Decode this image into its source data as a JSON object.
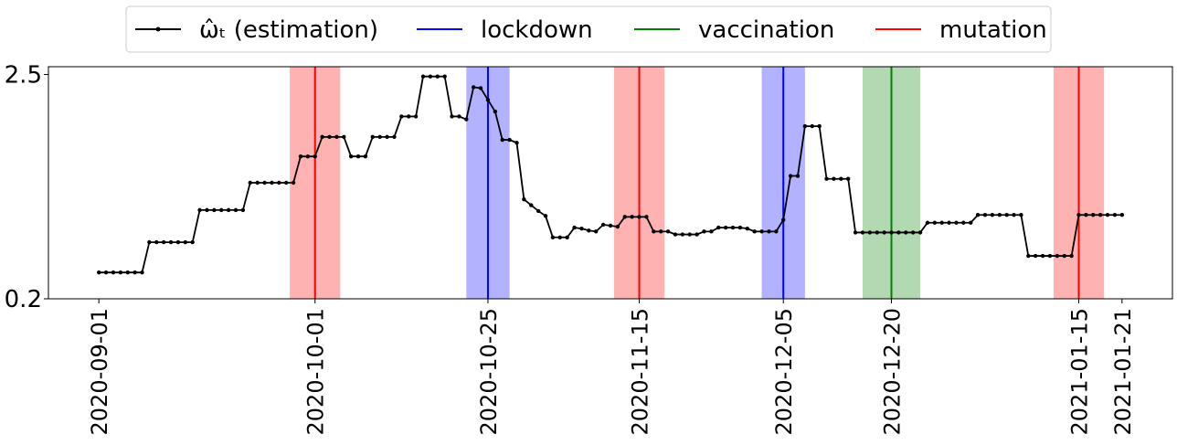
{
  "chart_data": {
    "type": "line",
    "x": [
      "2020-09-01",
      "2020-09-02",
      "2020-09-03",
      "2020-09-04",
      "2020-09-05",
      "2020-09-06",
      "2020-09-07",
      "2020-09-08",
      "2020-09-09",
      "2020-09-10",
      "2020-09-11",
      "2020-09-12",
      "2020-09-13",
      "2020-09-14",
      "2020-09-15",
      "2020-09-16",
      "2020-09-17",
      "2020-09-18",
      "2020-09-19",
      "2020-09-20",
      "2020-09-21",
      "2020-09-22",
      "2020-09-23",
      "2020-09-24",
      "2020-09-25",
      "2020-09-26",
      "2020-09-27",
      "2020-09-28",
      "2020-09-29",
      "2020-09-30",
      "2020-10-01",
      "2020-10-02",
      "2020-10-03",
      "2020-10-04",
      "2020-10-05",
      "2020-10-06",
      "2020-10-07",
      "2020-10-08",
      "2020-10-09",
      "2020-10-10",
      "2020-10-11",
      "2020-10-12",
      "2020-10-13",
      "2020-10-14",
      "2020-10-15",
      "2020-10-16",
      "2020-10-17",
      "2020-10-18",
      "2020-10-19",
      "2020-10-20",
      "2020-10-21",
      "2020-10-22",
      "2020-10-23",
      "2020-10-24",
      "2020-10-25",
      "2020-10-26",
      "2020-10-27",
      "2020-10-28",
      "2020-10-29",
      "2020-10-30",
      "2020-10-31",
      "2020-11-01",
      "2020-11-02",
      "2020-11-03",
      "2020-11-04",
      "2020-11-05",
      "2020-11-06",
      "2020-11-07",
      "2020-11-08",
      "2020-11-09",
      "2020-11-10",
      "2020-11-11",
      "2020-11-12",
      "2020-11-13",
      "2020-11-14",
      "2020-11-15",
      "2020-11-16",
      "2020-11-17",
      "2020-11-18",
      "2020-11-19",
      "2020-11-20",
      "2020-11-21",
      "2020-11-22",
      "2020-11-23",
      "2020-11-24",
      "2020-11-25",
      "2020-11-26",
      "2020-11-27",
      "2020-11-28",
      "2020-11-29",
      "2020-11-30",
      "2020-12-01",
      "2020-12-02",
      "2020-12-03",
      "2020-12-04",
      "2020-12-05",
      "2020-12-06",
      "2020-12-07",
      "2020-12-08",
      "2020-12-09",
      "2020-12-10",
      "2020-12-11",
      "2020-12-12",
      "2020-12-13",
      "2020-12-14",
      "2020-12-15",
      "2020-12-16",
      "2020-12-17",
      "2020-12-18",
      "2020-12-19",
      "2020-12-20",
      "2020-12-21",
      "2020-12-22",
      "2020-12-23",
      "2020-12-24",
      "2020-12-25",
      "2020-12-26",
      "2020-12-27",
      "2020-12-28",
      "2020-12-29",
      "2020-12-30",
      "2020-12-31",
      "2021-01-01",
      "2021-01-02",
      "2021-01-03",
      "2021-01-04",
      "2021-01-05",
      "2021-01-06",
      "2021-01-07",
      "2021-01-08",
      "2021-01-09",
      "2021-01-10",
      "2021-01-11",
      "2021-01-12",
      "2021-01-13",
      "2021-01-14",
      "2021-01-15",
      "2021-01-16",
      "2021-01-17",
      "2021-01-18",
      "2021-01-19",
      "2021-01-20",
      "2021-01-21"
    ],
    "series": [
      {
        "name": "ω̂ₜ (estimation)",
        "color": "#000000",
        "values": [
          0.47,
          0.47,
          0.47,
          0.47,
          0.47,
          0.47,
          0.47,
          0.78,
          0.78,
          0.78,
          0.78,
          0.78,
          0.78,
          0.78,
          1.11,
          1.11,
          1.11,
          1.11,
          1.11,
          1.11,
          1.11,
          1.39,
          1.39,
          1.39,
          1.39,
          1.39,
          1.39,
          1.39,
          1.66,
          1.66,
          1.66,
          1.86,
          1.86,
          1.86,
          1.86,
          1.66,
          1.66,
          1.66,
          1.86,
          1.86,
          1.86,
          1.86,
          2.07,
          2.07,
          2.07,
          2.48,
          2.48,
          2.48,
          2.48,
          2.07,
          2.07,
          2.04,
          2.37,
          2.36,
          2.24,
          2.12,
          1.83,
          1.83,
          1.8,
          1.22,
          1.16,
          1.1,
          1.05,
          0.83,
          0.83,
          0.83,
          0.93,
          0.92,
          0.9,
          0.89,
          0.96,
          0.95,
          0.94,
          1.04,
          1.04,
          1.04,
          1.04,
          0.89,
          0.89,
          0.89,
          0.86,
          0.86,
          0.86,
          0.86,
          0.89,
          0.89,
          0.93,
          0.93,
          0.93,
          0.93,
          0.92,
          0.89,
          0.89,
          0.89,
          0.89,
          1.01,
          1.46,
          1.46,
          1.97,
          1.97,
          1.97,
          1.43,
          1.43,
          1.43,
          1.43,
          0.88,
          0.88,
          0.88,
          0.88,
          0.88,
          0.88,
          0.88,
          0.88,
          0.88,
          0.88,
          0.98,
          0.98,
          0.98,
          0.98,
          0.98,
          0.98,
          0.98,
          1.06,
          1.06,
          1.06,
          1.06,
          1.06,
          1.06,
          1.06,
          0.64,
          0.64,
          0.64,
          0.64,
          0.64,
          0.64,
          0.64,
          1.06,
          1.06,
          1.06,
          1.06,
          1.06,
          1.06,
          1.06
        ]
      }
    ],
    "events": [
      {
        "name": "lockdown",
        "color": "#0000ff",
        "dates": [
          "2020-10-25",
          "2020-12-05"
        ],
        "halfwidth_days": [
          3,
          3
        ]
      },
      {
        "name": "vaccination",
        "color": "#008000",
        "dates": [
          "2020-12-20"
        ],
        "halfwidth_days": [
          4
        ]
      },
      {
        "name": "mutation",
        "color": "#ff0000",
        "dates": [
          "2020-10-01",
          "2020-11-15",
          "2021-01-15"
        ],
        "halfwidth_days": [
          3.5,
          3.5,
          3.5
        ]
      }
    ],
    "xlim": [
      "2020-08-25",
      "2021-01-28"
    ],
    "xticks": [
      "2020-09-01",
      "2020-10-01",
      "2020-10-25",
      "2020-11-15",
      "2020-12-05",
      "2020-12-20",
      "2021-01-15",
      "2021-01-21"
    ],
    "ylim": [
      0.2,
      2.58
    ],
    "yticks": [
      0.2,
      2.5
    ]
  }
}
